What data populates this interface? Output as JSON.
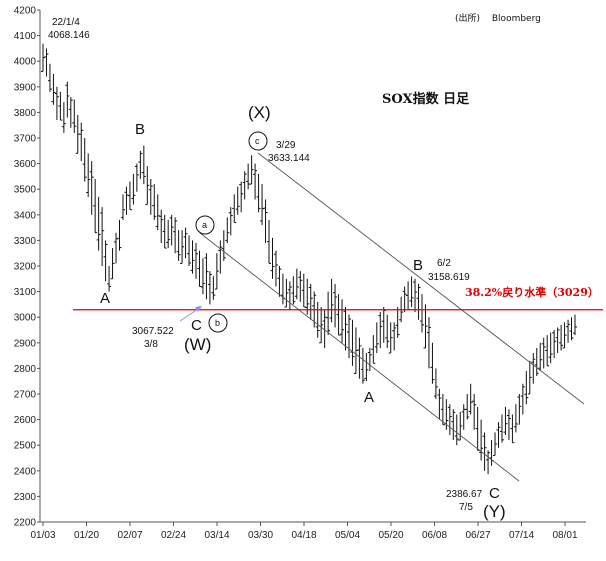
{
  "source_label": "(出所)　 Bloomberg",
  "chart_data": {
    "type": "ohlc",
    "title": "SOX指数 日足",
    "ylim": [
      2200,
      4200
    ],
    "yticks": [
      2200,
      2300,
      2400,
      2500,
      2600,
      2700,
      2800,
      2900,
      3000,
      3100,
      3200,
      3300,
      3400,
      3500,
      3600,
      3700,
      3800,
      3900,
      4000,
      4100,
      4200
    ],
    "xtick_labels": [
      "01/03",
      "01/20",
      "02/07",
      "02/24",
      "03/14",
      "03/30",
      "04/18",
      "05/04",
      "05/20",
      "06/08",
      "06/27",
      "07/14",
      "08/01"
    ],
    "grid": false,
    "hline": {
      "value": 3029,
      "label": "38.2%戻り水準（3029）",
      "color": "#e00000"
    },
    "channel_color": "#555555",
    "bar_color": "#111111",
    "annotations": {
      "peak_date": "22/1/4",
      "peak_value": "4068.146",
      "x_date": "3/29",
      "x_value": "3633.144",
      "w_date": "3/8",
      "w_value": "3067.522",
      "b2_date": "6/2",
      "b2_value": "3158.619",
      "y_date": "7/5",
      "y_value": "2386.67"
    },
    "wave_labels": [
      "A",
      "B",
      "C",
      "(W)",
      "(X)",
      "A",
      "B",
      "C",
      "(Y)"
    ],
    "circle_labels": [
      "a",
      "b",
      "c"
    ],
    "x": [
      0,
      1,
      2,
      3,
      4,
      5,
      6,
      7,
      8,
      9,
      10,
      11,
      12,
      13,
      14,
      15,
      16,
      17,
      18,
      19,
      20,
      21,
      22,
      23,
      24,
      25,
      26,
      27,
      28,
      29,
      30,
      31,
      32,
      33,
      34,
      35,
      36,
      37,
      38,
      39,
      40,
      41,
      42,
      43,
      44,
      45,
      46,
      47,
      48,
      49,
      50,
      51,
      52,
      53,
      54,
      55,
      56,
      57,
      58,
      59,
      60,
      61,
      62,
      63,
      64,
      65,
      66,
      67,
      68,
      69,
      70,
      71,
      72,
      73,
      74,
      75,
      76,
      77,
      78,
      79,
      80,
      81,
      82,
      83,
      84,
      85,
      86,
      87,
      88,
      89,
      90,
      91,
      92,
      93,
      94,
      95,
      96,
      97,
      98,
      99,
      100,
      101,
      102,
      103,
      104,
      105,
      106,
      107,
      108,
      109,
      110,
      111,
      112,
      113,
      114,
      115,
      116,
      117,
      118,
      119,
      120,
      121,
      122,
      123,
      124,
      125,
      126,
      127,
      128,
      129,
      130,
      131,
      132,
      133,
      134,
      135,
      136,
      137,
      138,
      139,
      140,
      141,
      142,
      143,
      144,
      145,
      146,
      147,
      148,
      149,
      150,
      151,
      152,
      153
    ],
    "high": [
      4068,
      4050,
      3990,
      3950,
      3900,
      3880,
      3840,
      3920,
      3860,
      3850,
      3790,
      3760,
      3700,
      3640,
      3610,
      3540,
      3470,
      3430,
      3300,
      3200,
      3270,
      3330,
      3380,
      3480,
      3510,
      3530,
      3560,
      3600,
      3650,
      3670,
      3590,
      3540,
      3520,
      3480,
      3420,
      3400,
      3380,
      3400,
      3390,
      3340,
      3340,
      3350,
      3320,
      3300,
      3290,
      3260,
      3230,
      3250,
      3180,
      3160,
      3250,
      3300,
      3340,
      3390,
      3430,
      3480,
      3510,
      3530,
      3570,
      3600,
      3633,
      3600,
      3560,
      3520,
      3460,
      3380,
      3310,
      3260,
      3200,
      3170,
      3150,
      3140,
      3160,
      3190,
      3180,
      3170,
      3150,
      3130,
      3100,
      3060,
      3040,
      3030,
      3100,
      3150,
      3130,
      3090,
      3070,
      3040,
      3010,
      2990,
      2960,
      2920,
      2880,
      2860,
      2880,
      2930,
      2980,
      3020,
      3040,
      3010,
      2980,
      2980,
      3040,
      3080,
      3120,
      3140,
      3159,
      3150,
      3130,
      3090,
      3050,
      3000,
      2900,
      2800,
      2720,
      2700,
      2680,
      2660,
      2640,
      2620,
      2630,
      2660,
      2700,
      2740,
      2700,
      2650,
      2600,
      2550,
      2480,
      2520,
      2550,
      2590,
      2620,
      2650,
      2640,
      2620,
      2660,
      2700,
      2740,
      2790,
      2830,
      2860,
      2880,
      2900,
      2920,
      2930,
      2940,
      2950,
      2960,
      2970,
      2980,
      2990,
      3000,
      3010
    ],
    "low": [
      3960,
      3940,
      3880,
      3830,
      3770,
      3770,
      3720,
      3780,
      3740,
      3720,
      3640,
      3610,
      3530,
      3470,
      3400,
      3330,
      3260,
      3200,
      3140,
      3100,
      3150,
      3210,
      3260,
      3380,
      3400,
      3420,
      3440,
      3490,
      3540,
      3520,
      3440,
      3400,
      3380,
      3340,
      3290,
      3270,
      3270,
      3280,
      3250,
      3220,
      3210,
      3230,
      3200,
      3170,
      3150,
      3120,
      3090,
      3070,
      3050,
      3068,
      3110,
      3170,
      3220,
      3290,
      3320,
      3370,
      3400,
      3410,
      3460,
      3500,
      3520,
      3460,
      3410,
      3360,
      3290,
      3210,
      3150,
      3120,
      3080,
      3050,
      3040,
      3030,
      3050,
      3070,
      3060,
      3040,
      3010,
      2990,
      2960,
      2920,
      2900,
      2880,
      2930,
      2980,
      2960,
      2930,
      2900,
      2870,
      2840,
      2810,
      2780,
      2760,
      2740,
      2750,
      2790,
      2820,
      2860,
      2880,
      2900,
      2880,
      2860,
      2870,
      2920,
      2980,
      3020,
      3030,
      3040,
      3020,
      2990,
      2940,
      2880,
      2800,
      2740,
      2680,
      2600,
      2580,
      2560,
      2540,
      2520,
      2500,
      2520,
      2560,
      2600,
      2620,
      2560,
      2480,
      2440,
      2400,
      2387,
      2420,
      2460,
      2490,
      2510,
      2540,
      2520,
      2510,
      2550,
      2580,
      2620,
      2660,
      2700,
      2740,
      2770,
      2790,
      2800,
      2810,
      2820,
      2840,
      2860,
      2870,
      2880,
      2900,
      2910,
      2930
    ]
  }
}
